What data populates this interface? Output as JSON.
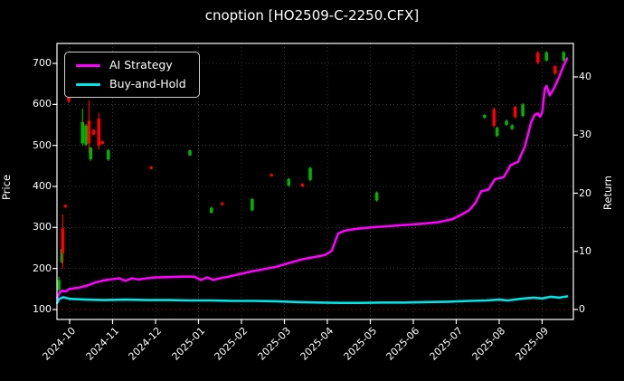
{
  "window": {
    "title": "cnoption [HO2509-C-2250.CFX]"
  },
  "chart_data": {
    "type": "candlestick",
    "title": "cnoption [HO2509-C-2250.CFX]",
    "ylabel_left": "Price",
    "ylabel_right": "Return",
    "x_tick_labels": [
      "2024-10",
      "2024-11",
      "2024-12",
      "2025-01",
      "2025-02",
      "2025-03",
      "2025-04",
      "2025-05",
      "2025-06",
      "2025-07",
      "2025-08",
      "2025-09"
    ],
    "y_ticks_left": [
      100,
      200,
      300,
      400,
      500,
      600,
      700
    ],
    "y_ticks_right": [
      0,
      10,
      20,
      30,
      40
    ],
    "ylim_left": [
      85,
      755
    ],
    "ylim_right": [
      0,
      45
    ],
    "grid": true,
    "legend_position": "upper-left",
    "colors": {
      "background": "#000000",
      "spine": "#ffffff",
      "grid": "rgba(255,255,255,0.28)",
      "baseline_red": "#7a0000",
      "candle_up": "#00b300",
      "candle_down": "#ff0000",
      "ai_strategy": "#ff00ff",
      "buy_and_hold": "#00e5e5"
    },
    "legend": {
      "items": [
        {
          "label": "AI Strategy",
          "color": "#ff00ff"
        },
        {
          "label": "Buy-and-Hold",
          "color": "#00e5e5"
        }
      ]
    },
    "series": [
      {
        "name": "AI Strategy",
        "color": "#ff00ff",
        "axis": "price",
        "points": [
          [
            -0.29,
            128
          ],
          [
            -0.24,
            140
          ],
          [
            -0.18,
            146
          ],
          [
            -0.1,
            144
          ],
          [
            0,
            150
          ],
          [
            0.2,
            153
          ],
          [
            0.4,
            158
          ],
          [
            0.6,
            166
          ],
          [
            0.8,
            171
          ],
          [
            1.0,
            174
          ],
          [
            1.15,
            176
          ],
          [
            1.3,
            170
          ],
          [
            1.45,
            176
          ],
          [
            1.6,
            173
          ],
          [
            1.8,
            176
          ],
          [
            2.0,
            178
          ],
          [
            2.3,
            179
          ],
          [
            2.6,
            180
          ],
          [
            2.9,
            180
          ],
          [
            3.05,
            172
          ],
          [
            3.2,
            178
          ],
          [
            3.35,
            172
          ],
          [
            3.5,
            176
          ],
          [
            3.7,
            180
          ],
          [
            3.9,
            185
          ],
          [
            4.2,
            192
          ],
          [
            4.5,
            198
          ],
          [
            4.8,
            204
          ],
          [
            5.1,
            213
          ],
          [
            5.4,
            222
          ],
          [
            5.7,
            228
          ],
          [
            5.95,
            233
          ],
          [
            6.1,
            243
          ],
          [
            6.25,
            285
          ],
          [
            6.4,
            292
          ],
          [
            6.7,
            297
          ],
          [
            7.0,
            300
          ],
          [
            7.4,
            303
          ],
          [
            7.8,
            306
          ],
          [
            8.2,
            309
          ],
          [
            8.6,
            313
          ],
          [
            8.9,
            320
          ],
          [
            9.1,
            330
          ],
          [
            9.3,
            342
          ],
          [
            9.45,
            360
          ],
          [
            9.58,
            388
          ],
          [
            9.75,
            392
          ],
          [
            9.9,
            418
          ],
          [
            10.1,
            422
          ],
          [
            10.27,
            452
          ],
          [
            10.44,
            460
          ],
          [
            10.6,
            498
          ],
          [
            10.74,
            556
          ],
          [
            10.82,
            574
          ],
          [
            10.9,
            578
          ],
          [
            10.95,
            570
          ],
          [
            11.0,
            580
          ],
          [
            11.06,
            638
          ],
          [
            11.1,
            645
          ],
          [
            11.18,
            622
          ],
          [
            11.28,
            640
          ],
          [
            11.4,
            668
          ],
          [
            11.5,
            695
          ],
          [
            11.58,
            712
          ]
        ]
      },
      {
        "name": "Buy-and-Hold",
        "color": "#00e5e5",
        "axis": "price",
        "points": [
          [
            -0.29,
            116
          ],
          [
            -0.24,
            126
          ],
          [
            -0.15,
            130
          ],
          [
            0,
            126
          ],
          [
            0.4,
            124
          ],
          [
            0.8,
            123
          ],
          [
            1.3,
            124
          ],
          [
            1.8,
            123
          ],
          [
            2.3,
            123
          ],
          [
            2.8,
            122
          ],
          [
            3.3,
            122
          ],
          [
            3.8,
            121
          ],
          [
            4.3,
            121
          ],
          [
            4.8,
            120
          ],
          [
            5.3,
            118
          ],
          [
            5.8,
            117
          ],
          [
            6.3,
            116
          ],
          [
            6.8,
            116
          ],
          [
            7.3,
            117
          ],
          [
            7.8,
            117
          ],
          [
            8.3,
            118
          ],
          [
            8.8,
            119
          ],
          [
            9.3,
            121
          ],
          [
            9.7,
            122
          ],
          [
            10.0,
            124
          ],
          [
            10.2,
            122
          ],
          [
            10.5,
            126
          ],
          [
            10.8,
            129
          ],
          [
            11.0,
            127
          ],
          [
            11.2,
            131
          ],
          [
            11.4,
            129
          ],
          [
            11.58,
            132
          ]
        ]
      }
    ],
    "candles": [
      {
        "x": -0.25,
        "color": "up",
        "low": 143,
        "high": 180,
        "body": [
          148,
          172
        ]
      },
      {
        "x": -0.18,
        "color": "up",
        "low": 213,
        "high": 250,
        "body": [
          215,
          248
        ]
      },
      {
        "x": -0.16,
        "color": "down",
        "low": 200,
        "high": 332,
        "body": [
          238,
          298
        ]
      },
      {
        "x": -0.1,
        "color": "down",
        "low": 348,
        "high": 356,
        "body": [
          349,
          355
        ]
      },
      {
        "x": -0.02,
        "color": "down",
        "low": 603,
        "high": 640,
        "body": [
          608,
          634
        ]
      },
      {
        "x": 0.3,
        "color": "up",
        "low": 500,
        "high": 590,
        "body": [
          505,
          557
        ]
      },
      {
        "x": 0.38,
        "color": "up",
        "low": 498,
        "high": 552,
        "body": [
          502,
          548
        ]
      },
      {
        "x": 0.45,
        "color": "down",
        "low": 480,
        "high": 610,
        "body": [
          505,
          560
        ]
      },
      {
        "x": 0.49,
        "color": "up",
        "low": 462,
        "high": 497,
        "body": [
          466,
          494
        ]
      },
      {
        "x": 0.56,
        "color": "down",
        "low": 525,
        "high": 540,
        "body": [
          527,
          537
        ]
      },
      {
        "x": 0.68,
        "color": "down",
        "low": 490,
        "high": 579,
        "body": [
          500,
          565
        ]
      },
      {
        "x": 0.76,
        "color": "down",
        "low": 502,
        "high": 512,
        "body": [
          504,
          510
        ]
      },
      {
        "x": 0.9,
        "color": "up",
        "low": 462,
        "high": 492,
        "body": [
          466,
          488
        ]
      },
      {
        "x": 1.9,
        "color": "down",
        "low": 442,
        "high": 450,
        "body": [
          443,
          448
        ]
      },
      {
        "x": 2.8,
        "color": "up",
        "low": 474,
        "high": 490,
        "body": [
          476,
          488
        ]
      },
      {
        "x": 3.3,
        "color": "up",
        "low": 334,
        "high": 351,
        "body": [
          336,
          348
        ]
      },
      {
        "x": 3.55,
        "color": "down",
        "low": 354,
        "high": 362,
        "body": [
          355,
          360
        ]
      },
      {
        "x": 4.25,
        "color": "up",
        "low": 339,
        "high": 372,
        "body": [
          342,
          369
        ]
      },
      {
        "x": 4.7,
        "color": "down",
        "low": 424,
        "high": 432,
        "body": [
          425,
          430
        ]
      },
      {
        "x": 5.1,
        "color": "up",
        "low": 399,
        "high": 421,
        "body": [
          402,
          418
        ]
      },
      {
        "x": 5.42,
        "color": "down",
        "low": 399,
        "high": 408,
        "body": [
          400,
          406
        ]
      },
      {
        "x": 5.6,
        "color": "up",
        "low": 413,
        "high": 448,
        "body": [
          416,
          445
        ]
      },
      {
        "x": 7.15,
        "color": "up",
        "low": 363,
        "high": 388,
        "body": [
          366,
          385
        ]
      },
      {
        "x": 9.66,
        "color": "up",
        "low": 565,
        "high": 576,
        "body": [
          567,
          574
        ]
      },
      {
        "x": 9.88,
        "color": "down",
        "low": 543,
        "high": 593,
        "body": [
          548,
          588
        ]
      },
      {
        "x": 9.95,
        "color": "up",
        "low": 520,
        "high": 546,
        "body": [
          523,
          543
        ]
      },
      {
        "x": 10.17,
        "color": "up",
        "low": 548,
        "high": 563,
        "body": [
          550,
          560
        ]
      },
      {
        "x": 10.3,
        "color": "up",
        "low": 538,
        "high": 552,
        "body": [
          540,
          549
        ]
      },
      {
        "x": 10.37,
        "color": "down",
        "low": 566,
        "high": 597,
        "body": [
          569,
          594
        ]
      },
      {
        "x": 10.55,
        "color": "up",
        "low": 568,
        "high": 603,
        "body": [
          572,
          600
        ]
      },
      {
        "x": 10.9,
        "color": "down",
        "low": 698,
        "high": 730,
        "body": [
          702,
          726
        ]
      },
      {
        "x": 11.1,
        "color": "up",
        "low": 704,
        "high": 730,
        "body": [
          707,
          727
        ]
      },
      {
        "x": 11.3,
        "color": "down",
        "low": 672,
        "high": 696,
        "body": [
          675,
          693
        ]
      },
      {
        "x": 11.5,
        "color": "up",
        "low": 704,
        "high": 730,
        "body": [
          707,
          727
        ]
      }
    ]
  }
}
